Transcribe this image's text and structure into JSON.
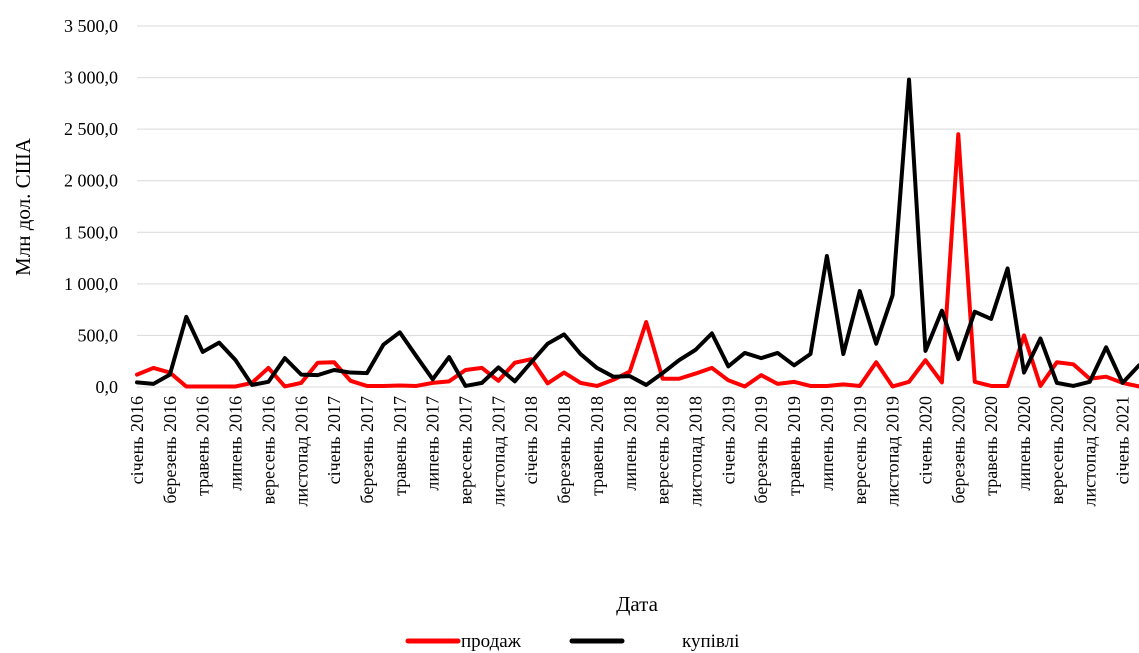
{
  "chart_data": {
    "type": "line",
    "title": "",
    "xlabel": "Дата",
    "ylabel": "Млн дол. США",
    "ylim": [
      0,
      3500
    ],
    "yticks": [
      0,
      500,
      1000,
      1500,
      2000,
      2500,
      3000,
      3500
    ],
    "ytick_labels": [
      "0,0",
      "500,0",
      "1 000,0",
      "1 500,0",
      "2 000,0",
      "2 500,0",
      "3 000,0",
      "3 500,0"
    ],
    "grid": "horizontal",
    "legend_position": "bottom",
    "categories": [
      "січень 2016",
      "лютий 2016",
      "березень 2016",
      "квітень 2016",
      "травень 2016",
      "червень 2016",
      "липень 2016",
      "серпень 2016",
      "вересень 2016",
      "жовтень 2016",
      "листопад 2016",
      "грудень 2016",
      "січень 2017",
      "лютий 2017",
      "березень 2017",
      "квітень 2017",
      "травень 2017",
      "червень 2017",
      "липень 2017",
      "серпень 2017",
      "вересень 2017",
      "жовтень 2017",
      "листопад 2017",
      "грудень 2017",
      "січень 2018",
      "лютий 2018",
      "березень 2018",
      "квітень 2018",
      "травень 2018",
      "червень 2018",
      "липень 2018",
      "серпень 2018",
      "вересень 2018",
      "жовтень 2018",
      "листопад 2018",
      "грудень 2018",
      "січень 2019",
      "лютий 2019",
      "березень 2019",
      "квітень 2019",
      "травень 2019",
      "червень 2019",
      "липень 2019",
      "серпень 2019",
      "вересень 2019",
      "жовтень 2019",
      "листопад 2019",
      "грудень 2019",
      "січень 2020",
      "лютий 2020",
      "березень 2020",
      "квітень 2020",
      "травень 2020",
      "червень 2020",
      "липень 2020",
      "серпень 2020",
      "вересень 2020",
      "жовтень 2020",
      "листопад 2020",
      "грудень 2020",
      "січень 2021",
      "лютий 2021"
    ],
    "tick_labels": [
      "січень 2016",
      "березень 2016",
      "травень 2016",
      "липень 2016",
      "вересень 2016",
      "листопад 2016",
      "січень 2017",
      "березень 2017",
      "травень 2017",
      "липень 2017",
      "вересень 2017",
      "листопад 2017",
      "січень 2018",
      "березень 2018",
      "травень 2018",
      "липень 2018",
      "вересень 2018",
      "листопад 2018",
      "січень 2019",
      "березень 2019",
      "травень 2019",
      "липень 2019",
      "вересень 2019",
      "листопад 2019",
      "січень 2020",
      "березень 2020",
      "травень 2020",
      "липень 2020",
      "вересень 2020",
      "листопад 2020",
      "січень 2021"
    ],
    "series": [
      {
        "name": "продаж",
        "color": "#ff0000",
        "values": [
          120,
          185,
          140,
          5,
          5,
          5,
          5,
          40,
          185,
          5,
          40,
          235,
          240,
          60,
          10,
          10,
          15,
          10,
          40,
          55,
          165,
          185,
          60,
          235,
          270,
          35,
          140,
          40,
          10,
          70,
          150,
          630,
          80,
          80,
          130,
          185,
          65,
          5,
          115,
          30,
          50,
          10,
          10,
          25,
          10,
          240,
          5,
          50,
          260,
          45,
          2450,
          50,
          10,
          10,
          500,
          10,
          240,
          220,
          80,
          100,
          40,
          5
        ]
      },
      {
        "name": "купівлі",
        "color": "#000000",
        "values": [
          45,
          30,
          120,
          680,
          340,
          430,
          260,
          20,
          50,
          280,
          120,
          115,
          165,
          140,
          135,
          410,
          530,
          300,
          75,
          290,
          10,
          40,
          190,
          55,
          240,
          420,
          510,
          320,
          185,
          100,
          105,
          20,
          135,
          260,
          360,
          520,
          200,
          330,
          280,
          330,
          210,
          320,
          1270,
          320,
          930,
          420,
          890,
          2980,
          350,
          740,
          270,
          730,
          660,
          1150,
          140,
          470,
          40,
          10,
          50,
          385,
          40,
          210
        ]
      }
    ]
  }
}
